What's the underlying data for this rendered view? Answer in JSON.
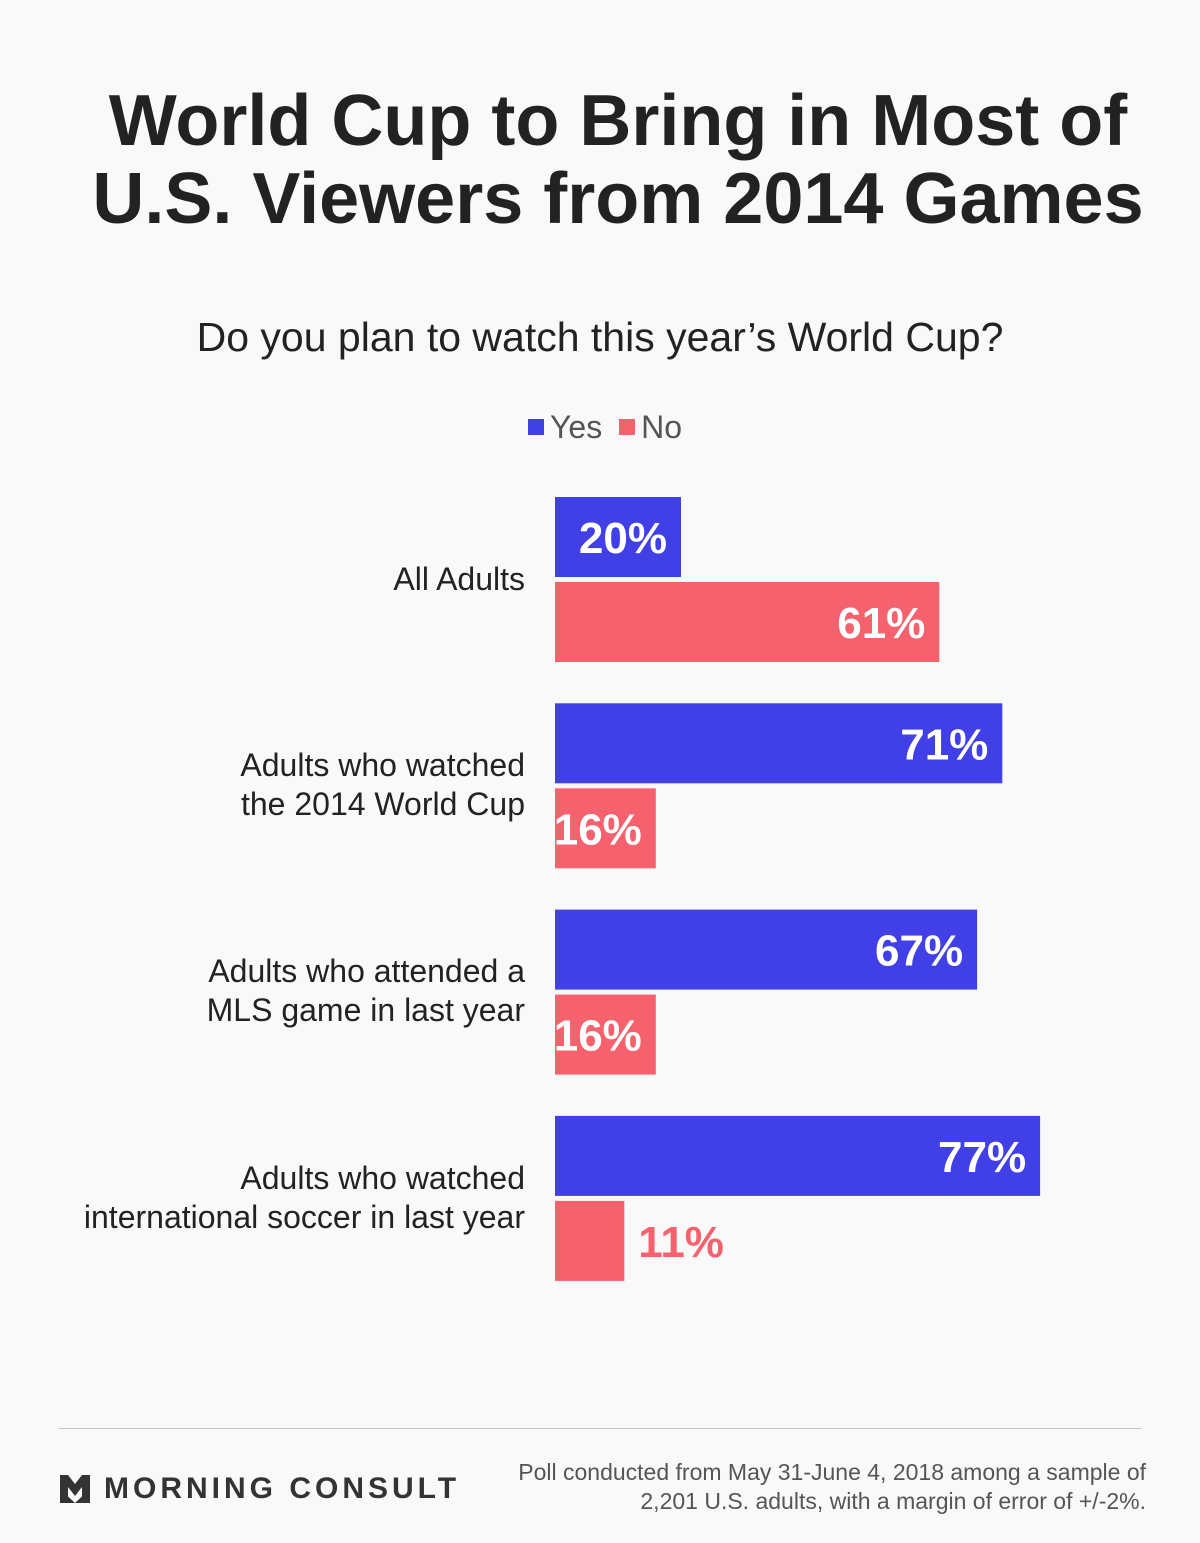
{
  "title": [
    "World Cup to Bring in Most of",
    "U.S. Viewers from 2014 Games"
  ],
  "subtitle": "Do you plan to watch this year’s World Cup?",
  "legend": [
    {
      "label": "Yes",
      "color": "#4040e6"
    },
    {
      "label": "No",
      "color": "#f5626d"
    }
  ],
  "chart_data": {
    "type": "bar",
    "orientation": "horizontal",
    "categories": [
      [
        "All Adults"
      ],
      [
        "Adults who watched",
        "the 2014 World Cup"
      ],
      [
        "Adults who attended a",
        "MLS game in last year"
      ],
      [
        "Adults who watched",
        "international soccer in last year"
      ]
    ],
    "series": [
      {
        "name": "Yes",
        "color": "#4040e6",
        "values": [
          20,
          71,
          67,
          77
        ],
        "labels": [
          "20%",
          "71%",
          "67%",
          "77%"
        ]
      },
      {
        "name": "No",
        "color": "#f5626d",
        "values": [
          61,
          16,
          16,
          11
        ],
        "labels": [
          "61%",
          "16%",
          "16%",
          "11%"
        ]
      }
    ],
    "xlim": [
      0,
      100
    ],
    "grid": false,
    "legend_position": "top"
  },
  "footer": {
    "brand": "MORNING CONSULT",
    "note": [
      "Poll conducted from May 31-June 4, 2018 among a sample of",
      "2,201 U.S. adults, with a margin of error of +/-2%."
    ]
  }
}
